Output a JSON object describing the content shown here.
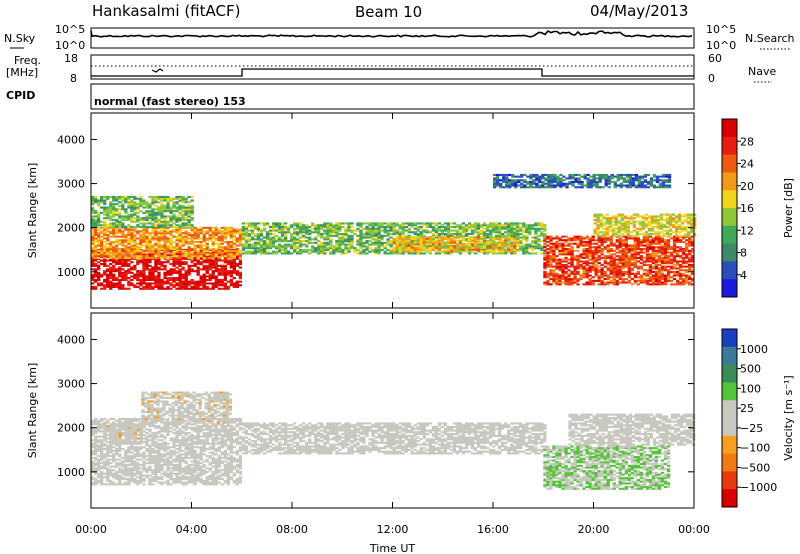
{
  "header": {
    "station": "Hankasalmi (fitACF)",
    "beam": "Beam 10",
    "date": "04/May/2013"
  },
  "noise_panel": {
    "left_label": "N.Sky",
    "right_label": "N.Search",
    "left_ticks": [
      "10^5",
      "10^0"
    ],
    "right_ticks": [
      "10^5",
      "10^0"
    ]
  },
  "freq_panel": {
    "left_label_1": "Freq.",
    "left_label_2": "[MHz]",
    "right_label": "Nave",
    "left_ticks": [
      "18",
      "8"
    ],
    "right_ticks": [
      "60",
      "0"
    ]
  },
  "cpid": {
    "label": "CPID",
    "mode": "normal (fast stereo) 153"
  },
  "colors": {
    "power_scale": [
      "#1a1adc",
      "#2a4fbd",
      "#3d8a6a",
      "#3fa85a",
      "#8fc63a",
      "#f2d21a",
      "#f29a1a",
      "#ef5a12",
      "#e81c10",
      "#d80000"
    ],
    "velocity_scale": [
      "#1a3fc0",
      "#3d7a9a",
      "#3c8c5a",
      "#55c43a",
      "#c8c8c0",
      "#c8c8c0",
      "#f5a020",
      "#f07a14",
      "#e8380e",
      "#d80000"
    ]
  },
  "chart_data": [
    {
      "type": "heatmap",
      "title": "",
      "xlabel": "",
      "ylabel": "Slant Range [km]",
      "x_ticks": [
        "00:00",
        "04:00",
        "08:00",
        "12:00",
        "16:00",
        "20:00",
        "00:00"
      ],
      "y_ticks": [
        "1000",
        "2000",
        "3000",
        "4000"
      ],
      "ylim": [
        180,
        4600
      ],
      "colorbar": {
        "label": "Power [dB]",
        "ticks": [
          "4",
          "8",
          "12",
          "16",
          "20",
          "24",
          "28"
        ],
        "range": [
          0,
          30
        ]
      },
      "regions": [
        {
          "t0": 0.0,
          "t1": 6.0,
          "r0": 600,
          "r1": 1500,
          "value": 28
        },
        {
          "t0": 0.0,
          "t1": 6.0,
          "r0": 1300,
          "r1": 2000,
          "value": 20
        },
        {
          "t0": 0.0,
          "t1": 4.0,
          "r0": 2000,
          "r1": 2700,
          "value": 12
        },
        {
          "t0": 6.0,
          "t1": 18.0,
          "r0": 1400,
          "r1": 2100,
          "value": 12
        },
        {
          "t0": 12.0,
          "t1": 17.0,
          "r0": 1450,
          "r1": 1800,
          "value": 18
        },
        {
          "t0": 18.0,
          "t1": 24.0,
          "r0": 700,
          "r1": 1800,
          "value": 24
        },
        {
          "t0": 20.0,
          "t1": 24.0,
          "r0": 1800,
          "r1": 2300,
          "value": 16
        },
        {
          "t0": 16.0,
          "t1": 23.0,
          "r0": 2900,
          "r1": 3200,
          "value": 6
        }
      ]
    },
    {
      "type": "heatmap",
      "title": "",
      "xlabel": "Time UT",
      "ylabel": "Slant Range [km]",
      "x_ticks": [
        "00:00",
        "04:00",
        "08:00",
        "12:00",
        "16:00",
        "20:00",
        "00:00"
      ],
      "y_ticks": [
        "1000",
        "2000",
        "3000",
        "4000"
      ],
      "ylim": [
        180,
        4600
      ],
      "colorbar": {
        "label": "Velocity [m s⁻¹]",
        "ticks": [
          "1000",
          "500",
          "100",
          "25",
          "−25",
          "−100",
          "−500",
          "−1000"
        ],
        "range": [
          -1000,
          1000
        ]
      },
      "regions": [
        {
          "t0": 0.0,
          "t1": 6.0,
          "r0": 700,
          "r1": 2200,
          "value": 0
        },
        {
          "t0": 2.0,
          "t1": 5.5,
          "r0": 2100,
          "r1": 2800,
          "value": -150
        },
        {
          "t0": 0.5,
          "t1": 2.0,
          "r0": 1700,
          "r1": 2100,
          "value": -150
        },
        {
          "t0": 6.0,
          "t1": 18.0,
          "r0": 1400,
          "r1": 2100,
          "value": 0
        },
        {
          "t0": 18.0,
          "t1": 23.0,
          "r0": 600,
          "r1": 1600,
          "value": 200
        },
        {
          "t0": 19.0,
          "t1": 24.0,
          "r0": 1600,
          "r1": 2300,
          "value": 0
        }
      ]
    }
  ]
}
